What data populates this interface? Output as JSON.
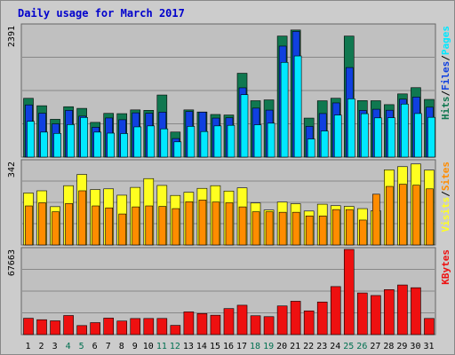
{
  "chart_data": {
    "type": "bar",
    "title": "Daily usage for March 2017",
    "categories": [
      "1",
      "2",
      "3",
      "4",
      "5",
      "6",
      "7",
      "8",
      "9",
      "10",
      "11",
      "12",
      "13",
      "14",
      "15",
      "16",
      "17",
      "18",
      "19",
      "20",
      "21",
      "22",
      "23",
      "24",
      "25",
      "26",
      "27",
      "28",
      "29",
      "30",
      "31"
    ],
    "weekend_days": [
      4,
      5,
      11,
      12,
      18,
      19,
      25,
      26
    ],
    "colors": {
      "background": "#cccccc",
      "panel": "#c0c0c0",
      "title": "#0000cc",
      "pages": "#00e8ff",
      "files": "#1040e0",
      "hits": "#107850",
      "visits": "#ffff20",
      "sites": "#ff8c00",
      "kbytes": "#ee1010",
      "weekday_label": "#000000",
      "weekend_label": "#007050"
    },
    "panels": [
      {
        "max_label": "2391",
        "ymax": 2391,
        "legend": [
          "Pages",
          "Files",
          "Hits"
        ],
        "series": [
          {
            "name": "Hits",
            "color_key": "hits",
            "values": [
              1070,
              935,
              688,
              917,
              887,
              632,
              796,
              791,
              859,
              851,
              1130,
              456,
              859,
              821,
              776,
              766,
              1526,
              1026,
              1041,
              2203,
              2313,
              710,
              1025,
              1071,
              2203,
              1028,
              1026,
              955,
              1150,
              1264,
              1050
            ]
          },
          {
            "name": "Files",
            "color_key": "files",
            "values": [
              950,
              799,
              605,
              850,
              745,
              543,
              712,
              680,
              806,
              798,
              818,
              338,
              830,
              818,
              710,
              715,
              1261,
              891,
              855,
              2020,
              2287,
              559,
              793,
              986,
              1630,
              850,
              871,
              853,
              1054,
              1094,
              908
            ]
          },
          {
            "name": "Pages",
            "color_key": "pages",
            "values": [
              651,
              455,
              431,
              592,
              721,
              455,
              436,
              428,
              550,
              568,
              514,
              278,
              559,
              465,
              568,
              578,
              1136,
              588,
              617,
              1724,
              1841,
              330,
              475,
              765,
              1061,
              790,
              714,
              717,
              965,
              793,
              724
            ]
          }
        ]
      },
      {
        "max_label": "342",
        "ymax": 342,
        "legend": [
          "Sites",
          "Visits"
        ],
        "series": [
          {
            "name": "Visits",
            "color_key": "visits",
            "values": [
              213,
              222,
              157,
              243,
              289,
              227,
              230,
              204,
              236,
              272,
              244,
              203,
              216,
              232,
              243,
              221,
              234,
              172,
              143,
              176,
              169,
              139,
              167,
              161,
              158,
              149,
              140,
              308,
              321,
              332,
              307
            ]
          },
          {
            "name": "Sites",
            "color_key": "sites",
            "values": [
              160,
              173,
              136,
              170,
              222,
              160,
              152,
              127,
              156,
              160,
              158,
              149,
              177,
              184,
              176,
              173,
              156,
              136,
              136,
              134,
              134,
              119,
              119,
              145,
              145,
              102,
              208,
              240,
              249,
              245,
              230
            ]
          }
        ]
      },
      {
        "max_label": "67663",
        "ymax": 67663,
        "legend": [
          "KBytes"
        ],
        "series": [
          {
            "name": "KBytes",
            "color_key": "kbytes",
            "values": [
              12970,
              11830,
              10950,
              15150,
              7170,
              9510,
              13090,
              10780,
              12770,
              12800,
              12830,
              7330,
              18040,
              16720,
              15390,
              20650,
              23330,
              14970,
              14250,
              22750,
              26500,
              18840,
              25900,
              38140,
              67663,
              33070,
              31050,
              35740,
              39410,
              37240,
              12820
            ]
          }
        ]
      }
    ]
  }
}
